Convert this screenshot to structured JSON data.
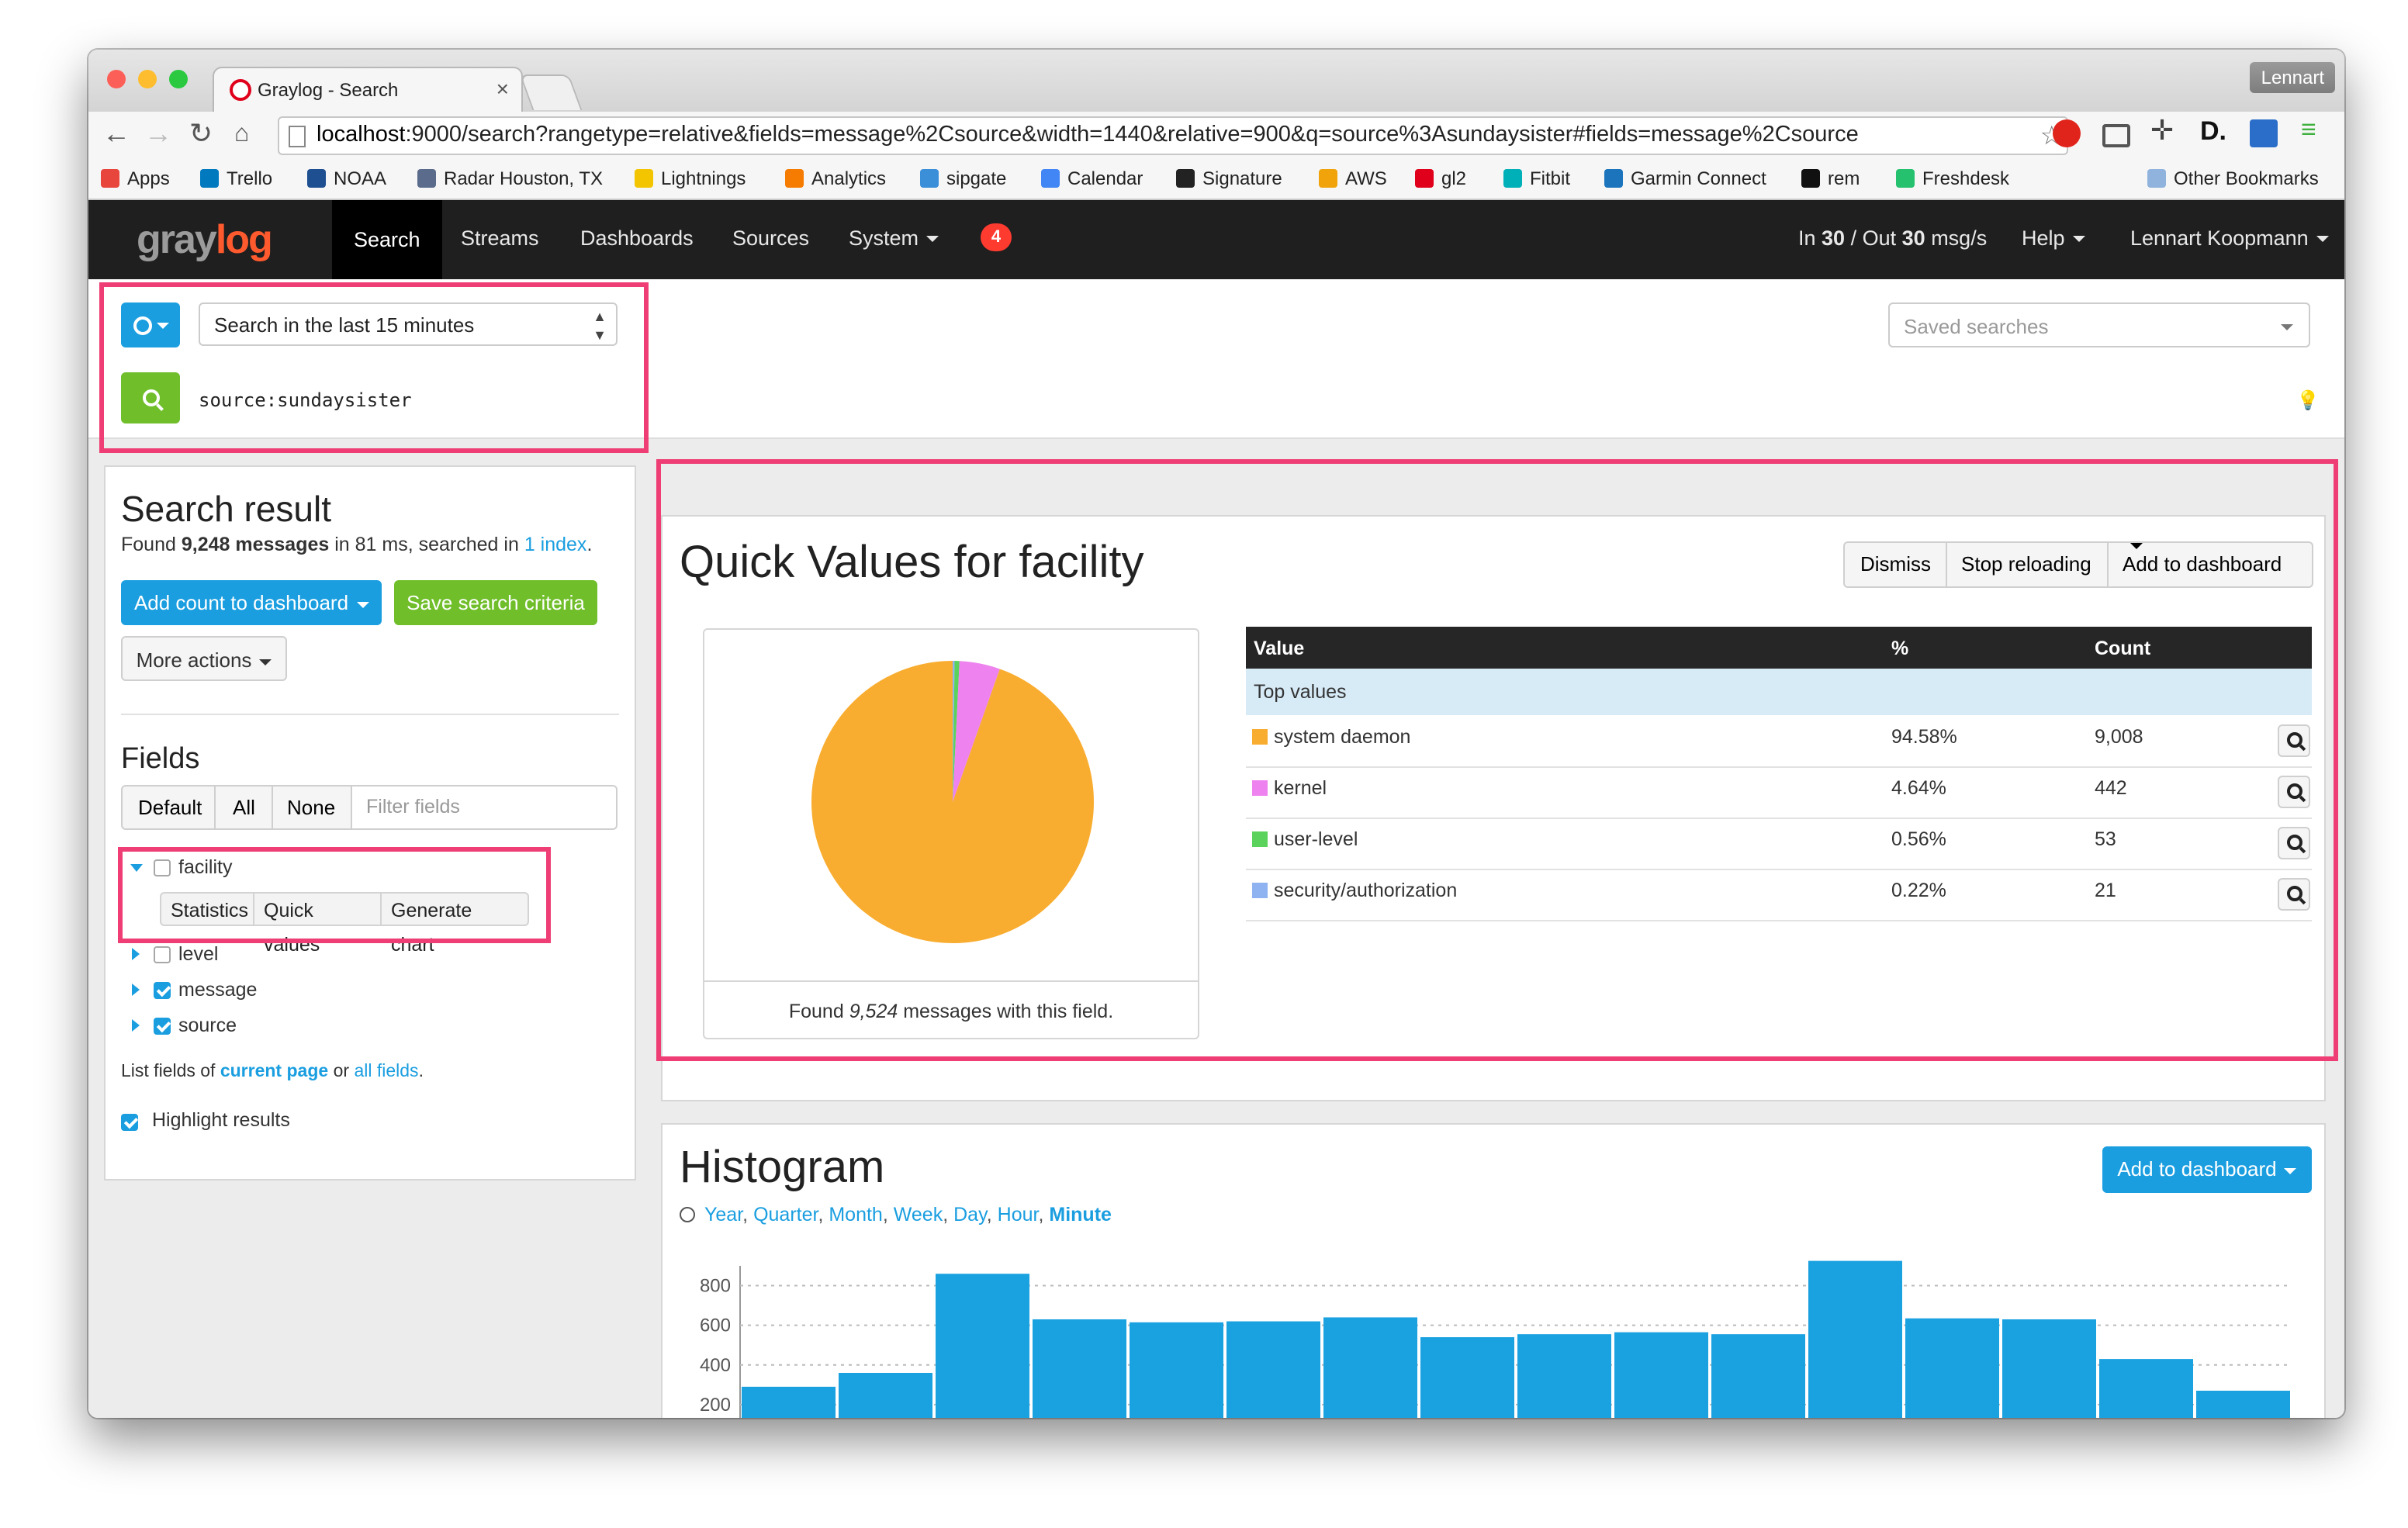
{
  "browser": {
    "profile": "Lennart",
    "tab_title": "Graylog - Search",
    "url_host": "localhost",
    "url_rest": ":9000/search?rangetype=relative&fields=message%2Csource&width=1440&relative=900&q=source%3Asundaysister#fields=message%2Csource",
    "bookmarks": [
      {
        "label": "Apps",
        "color": "#e8453c"
      },
      {
        "label": "Trello",
        "color": "#0079bf"
      },
      {
        "label": "NOAA",
        "color": "#1d4f91"
      },
      {
        "label": "Radar Houston, TX",
        "color": "#5a6b8c"
      },
      {
        "label": "Lightnings",
        "color": "#f2c500"
      },
      {
        "label": "Analytics",
        "color": "#f57c00"
      },
      {
        "label": "sipgate",
        "color": "#3b8fd9"
      },
      {
        "label": "Calendar",
        "color": "#4285f4"
      },
      {
        "label": "Signature",
        "color": "#222222"
      },
      {
        "label": "AWS",
        "color": "#f0a30a"
      },
      {
        "label": "gl2",
        "color": "#e0001b"
      },
      {
        "label": "Fitbit",
        "color": "#00b0b9"
      },
      {
        "label": "Garmin Connect",
        "color": "#1c75bc"
      },
      {
        "label": "rem",
        "color": "#111111"
      },
      {
        "label": "Freshdesk",
        "color": "#25c16f"
      }
    ],
    "other_bookmarks": "Other Bookmarks"
  },
  "nav": {
    "logo_part1": "gray",
    "logo_part2": "log",
    "items": [
      "Search",
      "Streams",
      "Dashboards",
      "Sources",
      "System"
    ],
    "notification_count": "4",
    "throughput_in": "In ",
    "throughput_in_val": "30",
    "throughput_sep": " / Out ",
    "throughput_out_val": "30",
    "throughput_unit": " msg/s",
    "help": "Help",
    "user": "Lennart Koopmann"
  },
  "search": {
    "range": "Search in the last 15 minutes",
    "saved_placeholder": "Saved searches",
    "query": "source:sundaysister"
  },
  "result": {
    "title": "Search result",
    "found_prefix": "Found ",
    "found_count": "9,248 messages",
    "found_mid": " in 81 ms, searched in ",
    "index_link": "1 index",
    "found_end": ".",
    "add_count": "Add count to dashboard",
    "save_criteria": "Save search criteria",
    "more_actions": "More actions"
  },
  "fields": {
    "title": "Fields",
    "filter_buttons": [
      "Default",
      "All",
      "None"
    ],
    "filter_placeholder": "Filter fields",
    "list": [
      {
        "name": "facility",
        "checked": false,
        "expanded": true
      },
      {
        "name": "level",
        "checked": false,
        "expanded": false
      },
      {
        "name": "message",
        "checked": true,
        "expanded": false
      },
      {
        "name": "source",
        "checked": true,
        "expanded": false
      }
    ],
    "facility_actions": [
      "Statistics",
      "Quick values",
      "Generate chart"
    ],
    "list_prefix": "List fields of ",
    "current_page": "current page",
    "list_mid": " or ",
    "all_fields": "all fields",
    "list_end": ".",
    "highlight": "Highlight results"
  },
  "quick_values": {
    "title": "Quick Values for facility",
    "actions": [
      "Dismiss",
      "Stop reloading",
      "Add to dashboard"
    ],
    "found_prefix": "Found ",
    "found_count": "9,524",
    "found_suffix": " messages with this field.",
    "table_headers": [
      "Value",
      "%",
      "Count"
    ],
    "top_values_label": "Top values",
    "rows": [
      {
        "value": "system daemon",
        "percent": "94.58%",
        "count": "9,008",
        "color": "#f9ad30"
      },
      {
        "value": "kernel",
        "percent": "4.64%",
        "count": "442",
        "color": "#ee82ee"
      },
      {
        "value": "user-level",
        "percent": "0.56%",
        "count": "53",
        "color": "#5bd25b"
      },
      {
        "value": "security/authorization",
        "percent": "0.22%",
        "count": "21",
        "color": "#8fb2f0"
      }
    ]
  },
  "histogram": {
    "title": "Histogram",
    "add_to_dashboard": "Add to dashboard",
    "resolutions": [
      "Year",
      "Quarter",
      "Month",
      "Week",
      "Day",
      "Hour",
      "Minute"
    ],
    "active_resolution": "Minute",
    "bar_color": "#1aa1e0"
  },
  "chart_data": {
    "type": "bar",
    "ylim": [
      0,
      900
    ],
    "yticks": [
      200,
      400,
      600,
      800
    ],
    "values": [
      290,
      360,
      860,
      630,
      615,
      620,
      640,
      540,
      555,
      565,
      555,
      925,
      635,
      630,
      430,
      270
    ],
    "grid": true
  }
}
